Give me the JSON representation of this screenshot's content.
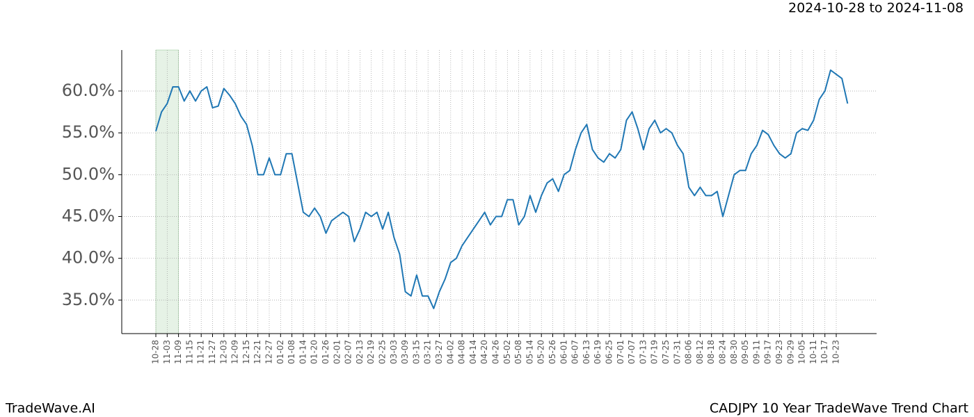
{
  "header": {
    "date_range": "2024-10-28 to 2024-11-08"
  },
  "footer": {
    "brand": "TradeWave.AI",
    "caption": "CADJPY 10 Year TradeWave Trend Chart"
  },
  "chart_data": {
    "type": "line",
    "categories": [
      "10-28",
      null,
      "11-03",
      null,
      "11-09",
      null,
      "11-15",
      null,
      "11-21",
      null,
      "11-27",
      null,
      "12-03",
      null,
      "12-09",
      null,
      "12-15",
      null,
      "12-21",
      null,
      "12-27",
      null,
      "01-02",
      null,
      "01-08",
      null,
      "01-14",
      null,
      "01-20",
      null,
      "01-26",
      null,
      "02-01",
      null,
      "02-07",
      null,
      "02-13",
      null,
      "02-19",
      null,
      "02-25",
      null,
      "03-03",
      null,
      "03-09",
      null,
      "03-15",
      null,
      "03-21",
      null,
      "03-27",
      null,
      "04-02",
      null,
      "04-08",
      null,
      "04-14",
      null,
      "04-20",
      null,
      "04-26",
      null,
      "05-02",
      null,
      "05-08",
      null,
      "05-14",
      null,
      "05-20",
      null,
      "05-26",
      null,
      "06-01",
      null,
      "06-07",
      null,
      "06-13",
      null,
      "06-19",
      null,
      "06-25",
      null,
      "07-01",
      null,
      "07-07",
      null,
      "07-13",
      null,
      "07-19",
      null,
      "07-25",
      null,
      "07-31",
      null,
      "08-06",
      null,
      "08-12",
      null,
      "08-18",
      null,
      "08-24",
      null,
      "08-30",
      null,
      "09-05",
      null,
      "09-11",
      null,
      "09-17",
      null,
      "09-23",
      null,
      "09-29",
      null,
      "10-05",
      null,
      "10-11",
      null,
      "10-17",
      null,
      "10-23",
      null,
      null
    ],
    "values": [
      55.2,
      57.5,
      58.5,
      60.5,
      60.5,
      58.8,
      60.0,
      58.8,
      60.0,
      60.5,
      58.0,
      58.2,
      60.3,
      59.5,
      58.5,
      57.0,
      56.0,
      53.5,
      50.0,
      50.0,
      52.0,
      50.0,
      50.0,
      52.5,
      52.5,
      49.0,
      45.5,
      45.0,
      46.0,
      45.0,
      43.0,
      44.5,
      45.0,
      45.5,
      45.0,
      42.0,
      43.5,
      45.5,
      45.0,
      45.5,
      43.5,
      45.5,
      42.5,
      40.5,
      36.0,
      35.5,
      38.0,
      35.5,
      35.5,
      34.0,
      36.0,
      37.5,
      39.5,
      40.0,
      41.5,
      42.5,
      43.5,
      44.5,
      45.5,
      44.0,
      45.0,
      45.0,
      47.0,
      47.0,
      44.0,
      45.0,
      47.5,
      45.5,
      47.5,
      49.0,
      49.5,
      48.0,
      50.0,
      50.5,
      53.0,
      55.0,
      56.0,
      53.0,
      52.0,
      51.5,
      52.5,
      52.0,
      53.0,
      56.5,
      57.5,
      55.5,
      53.0,
      55.5,
      56.5,
      55.0,
      55.5,
      55.0,
      53.5,
      52.5,
      48.5,
      47.5,
      48.5,
      47.5,
      47.5,
      48.0,
      45.0,
      47.5,
      50.0,
      50.5,
      50.5,
      52.5,
      53.5,
      55.3,
      54.8,
      53.5,
      52.5,
      52.0,
      52.5,
      55.0,
      55.5,
      55.3,
      56.5,
      59.0,
      60.0,
      62.5,
      62.0,
      61.5,
      58.5
    ],
    "color": "#1f77b4",
    "highlight": [
      0,
      4
    ],
    "highlight_color": "#e6f2e6",
    "ylim": [
      31.0,
      64.9
    ],
    "yticks": [
      {
        "value": 35,
        "label": "35.0%"
      },
      {
        "value": 40,
        "label": "40.0%"
      },
      {
        "value": 45,
        "label": "45.0%"
      },
      {
        "value": 50,
        "label": "50.0%"
      },
      {
        "value": 55,
        "label": "55.0%"
      },
      {
        "value": 60,
        "label": "60.0%"
      }
    ],
    "grid": true
  }
}
